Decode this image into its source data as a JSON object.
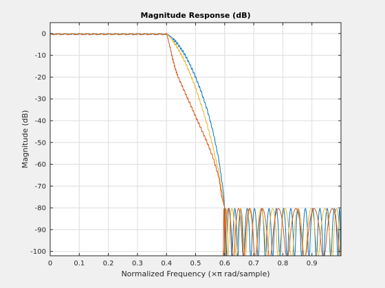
{
  "chart_data": {
    "type": "line",
    "title": "Magnitude Response (dB)",
    "xlabel": "Normalized Frequency (×π rad/sample)",
    "ylabel": "Magnitude (dB)",
    "xlim": [
      0,
      1
    ],
    "ylim": [
      -102,
      5
    ],
    "xticks": [
      0,
      0.1,
      0.2,
      0.3,
      0.4,
      0.5,
      0.6,
      0.7,
      0.8,
      0.9
    ],
    "yticks": [
      0,
      -10,
      -20,
      -30,
      -40,
      -50,
      -60,
      -70,
      -80,
      -90,
      -100
    ],
    "grid": true,
    "series": [
      {
        "color": "#0072bd",
        "passband_ripple_db": 0.5,
        "stopband_floor_db": -80,
        "points": [
          [
            0.4,
            0
          ],
          [
            0.42,
            -2
          ],
          [
            0.44,
            -5
          ],
          [
            0.46,
            -9
          ],
          [
            0.48,
            -14
          ],
          [
            0.5,
            -20
          ],
          [
            0.52,
            -27
          ],
          [
            0.54,
            -35
          ],
          [
            0.56,
            -45
          ],
          [
            0.58,
            -58
          ],
          [
            0.595,
            -72
          ],
          [
            0.6,
            -80
          ]
        ],
        "stopband_nulls": [
          0.605,
          0.625,
          0.645,
          0.665,
          0.69,
          0.715,
          0.74,
          0.765,
          0.79,
          0.815,
          0.84,
          0.865,
          0.89,
          0.915,
          0.94,
          0.965,
          0.99
        ]
      },
      {
        "color": "#edb120",
        "passband_ripple_db": 0.5,
        "stopband_floor_db": -80,
        "points": [
          [
            0.4,
            0
          ],
          [
            0.42,
            -3
          ],
          [
            0.44,
            -7
          ],
          [
            0.46,
            -12
          ],
          [
            0.48,
            -18
          ],
          [
            0.5,
            -25
          ],
          [
            0.52,
            -33
          ],
          [
            0.54,
            -42
          ],
          [
            0.56,
            -52
          ],
          [
            0.58,
            -64
          ],
          [
            0.595,
            -76
          ],
          [
            0.6,
            -80
          ]
        ],
        "stopband_nulls": [
          0.61,
          0.64,
          0.67,
          0.705,
          0.745,
          0.785,
          0.83,
          0.875,
          0.92,
          0.97
        ]
      },
      {
        "color": "#d95319",
        "passband_ripple_db": 0.6,
        "stopband_floor_db": -80,
        "points": [
          [
            0.4,
            0
          ],
          [
            0.41,
            -5
          ],
          [
            0.42,
            -11
          ],
          [
            0.43,
            -16
          ],
          [
            0.44,
            -20
          ],
          [
            0.46,
            -26
          ],
          [
            0.48,
            -32
          ],
          [
            0.5,
            -38
          ],
          [
            0.52,
            -44
          ],
          [
            0.54,
            -50
          ],
          [
            0.56,
            -57
          ],
          [
            0.58,
            -66
          ],
          [
            0.59,
            -75
          ],
          [
            0.6,
            -80
          ]
        ],
        "stopband_nulls": [
          0.595,
          0.63,
          0.665,
          0.705,
          0.755,
          0.815,
          0.875,
          0.94
        ]
      }
    ]
  }
}
